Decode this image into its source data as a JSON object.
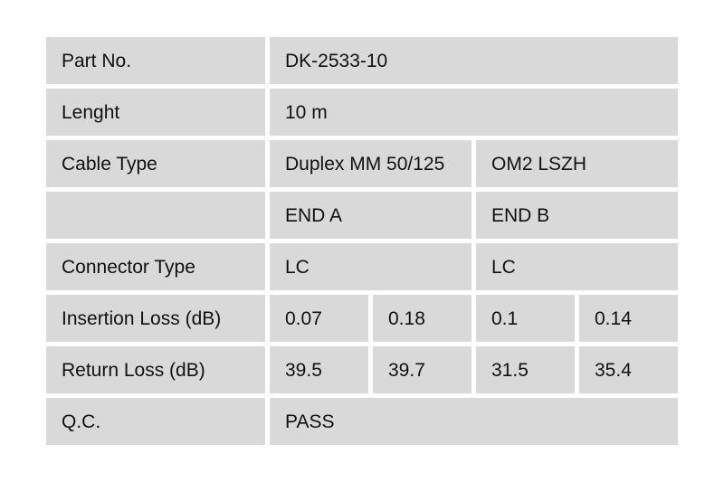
{
  "colors": {
    "page_bg": "#ffffff",
    "cell_bg": "#d9d9d9",
    "text": "#111111"
  },
  "table": {
    "rows": {
      "part_no": {
        "label": "Part No.",
        "value": "DK-2533-10"
      },
      "length": {
        "label": "Lenght",
        "value": "10 m"
      },
      "cable_type": {
        "label": "Cable Type",
        "end_a": "Duplex MM 50/125",
        "end_b": "OM2 LSZH"
      },
      "end_headers": {
        "label": "",
        "end_a": "END A",
        "end_b": "END B"
      },
      "connector_type": {
        "label": "Connector Type",
        "end_a": "LC",
        "end_b": "LC"
      },
      "insertion_loss": {
        "label": "Insertion Loss (dB)",
        "values": [
          "0.07",
          "0.18",
          "0.1",
          "0.14"
        ]
      },
      "return_loss": {
        "label": "Return Loss (dB)",
        "values": [
          "39.5",
          "39.7",
          "31.5",
          "35.4"
        ]
      },
      "qc": {
        "label": "Q.C.",
        "value": "PASS"
      }
    }
  }
}
